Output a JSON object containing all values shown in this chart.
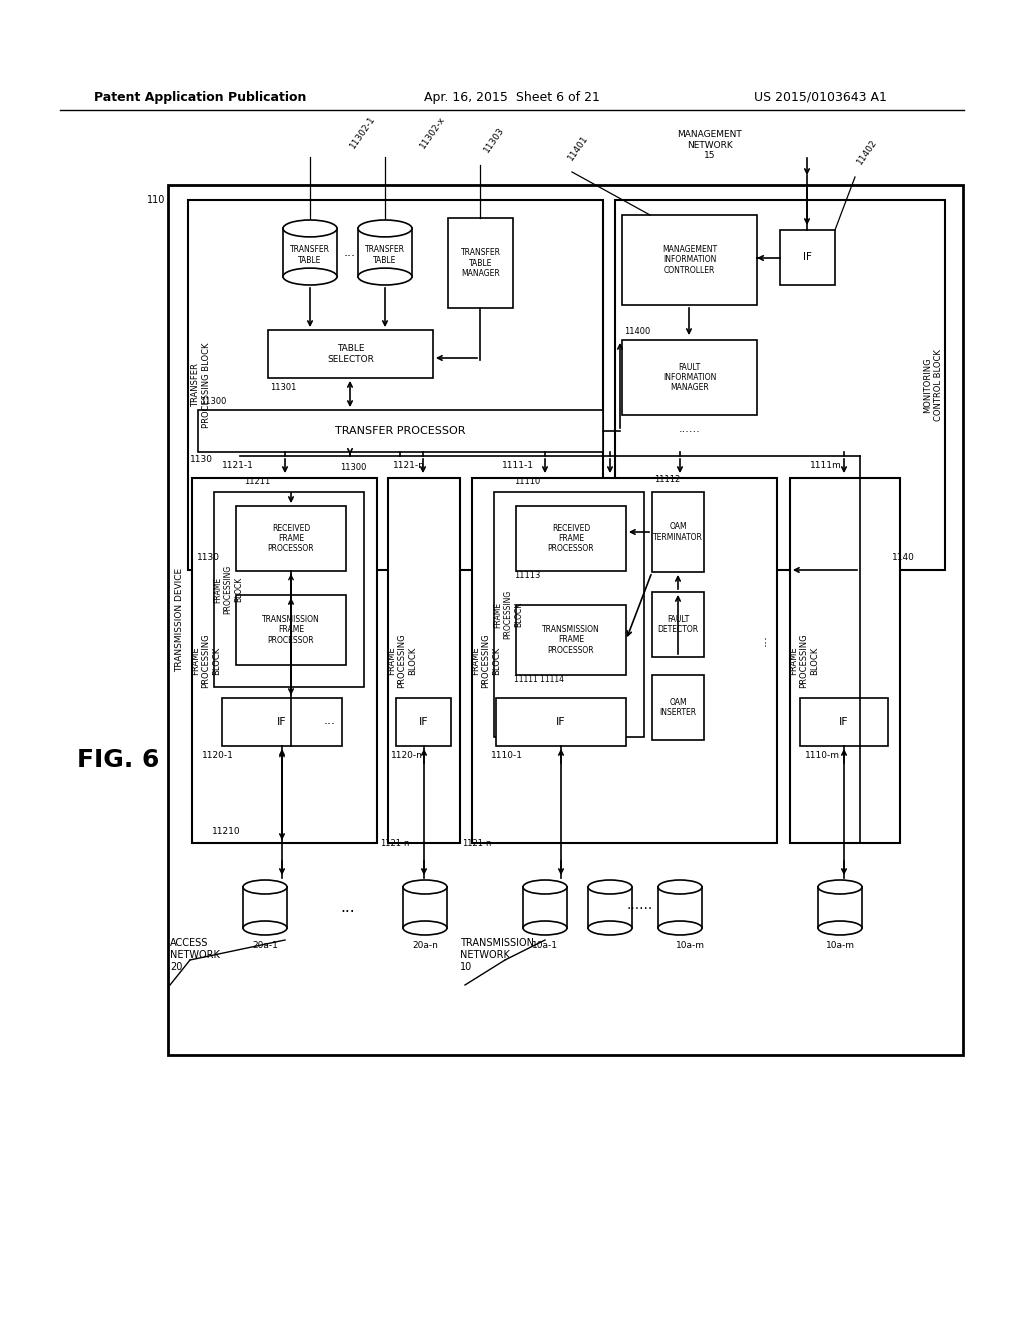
{
  "title_left": "Patent Application Publication",
  "title_mid": "Apr. 16, 2015  Sheet 6 of 21",
  "title_right": "US 2015/0103643 A1",
  "fig_label": "FIG. 6",
  "bg_color": "#ffffff"
}
